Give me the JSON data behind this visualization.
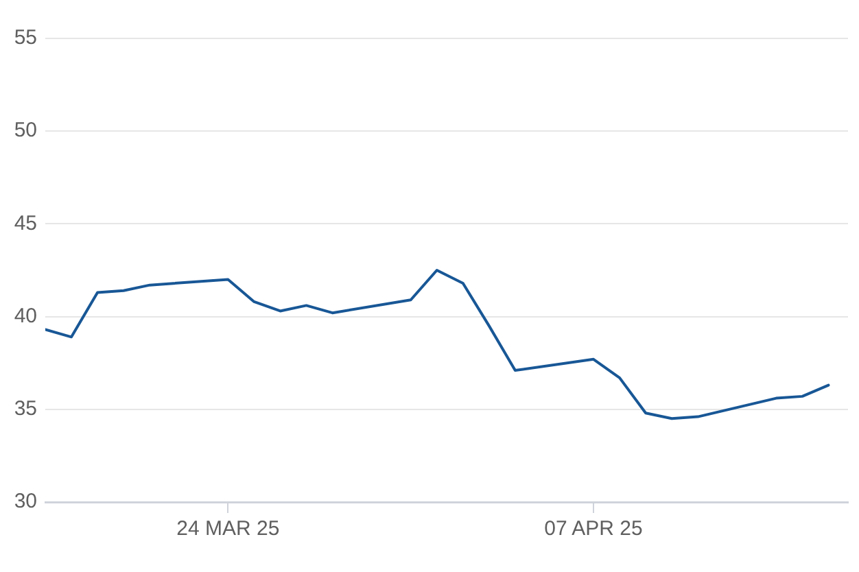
{
  "chart_data": {
    "type": "line",
    "x": [
      "2025-03-17",
      "2025-03-18",
      "2025-03-19",
      "2025-03-20",
      "2025-03-21",
      "2025-03-24",
      "2025-03-25",
      "2025-03-26",
      "2025-03-27",
      "2025-03-28",
      "2025-03-31",
      "2025-04-01",
      "2025-04-02",
      "2025-04-03",
      "2025-04-04",
      "2025-04-07",
      "2025-04-08",
      "2025-04-09",
      "2025-04-10",
      "2025-04-11",
      "2025-04-14",
      "2025-04-15",
      "2025-04-16"
    ],
    "series": [
      {
        "color": "#185796",
        "values": [
          39.3,
          38.9,
          41.3,
          41.4,
          41.7,
          42.0,
          40.8,
          40.3,
          40.6,
          40.2,
          40.9,
          42.5,
          41.8,
          39.5,
          37.1,
          37.7,
          36.7,
          34.8,
          34.5,
          34.6,
          35.6,
          35.7,
          36.3
        ]
      }
    ],
    "xlim": [
      "2025-03-17",
      "2025-04-16T18:00"
    ],
    "xticks": [
      {
        "value": "2025-03-24",
        "label": "24 MAR 25"
      },
      {
        "value": "2025-04-07",
        "label": "07 APR 25"
      }
    ],
    "ylim": [
      30,
      55
    ],
    "yticks": [
      30,
      35,
      40,
      45,
      50,
      55
    ],
    "grid": "y",
    "marker": "none"
  }
}
